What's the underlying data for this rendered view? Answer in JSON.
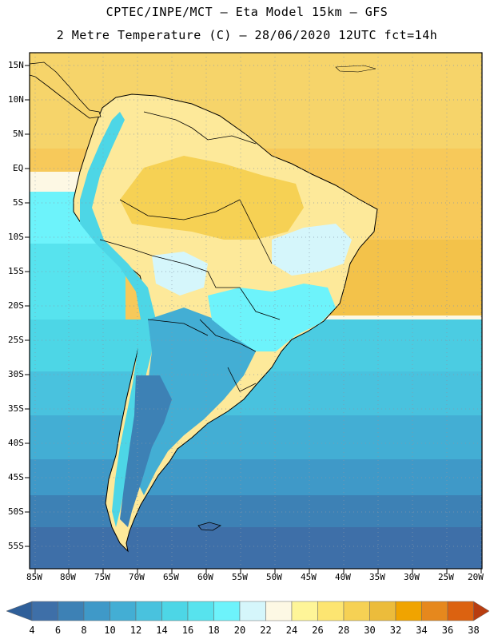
{
  "header": {
    "line1": "CPTEC/INPE/MCT –  Eta Model 15km – GFS",
    "line2": "2 Metre Temperature (C) – 28/06/2020 12UTC fct=14h"
  },
  "map": {
    "lat_labels": [
      "15N",
      "10N",
      "5N",
      "EQ",
      "5S",
      "10S",
      "15S",
      "20S",
      "25S",
      "30S",
      "35S",
      "40S",
      "45S",
      "50S",
      "55S"
    ],
    "lon_labels": [
      "85W",
      "80W",
      "75W",
      "70W",
      "65W",
      "60W",
      "55W",
      "50W",
      "45W",
      "40W",
      "35W",
      "30W",
      "25W",
      "20W"
    ]
  },
  "colorbar": {
    "labels": [
      "4",
      "6",
      "8",
      "10",
      "12",
      "14",
      "16",
      "18",
      "20",
      "22",
      "24",
      "26",
      "28",
      "30",
      "32",
      "34",
      "36",
      "38"
    ],
    "colors": [
      "#3e6fa8",
      "#3d81b5",
      "#3f99c8",
      "#43aed4",
      "#49c2de",
      "#4dd6e6",
      "#57e3ee",
      "#6df3fb",
      "#d5f6fb",
      "#fdf8e4",
      "#fef598",
      "#fde571",
      "#f6d154",
      "#ecbc3b",
      "#f0a400",
      "#e6881d",
      "#dc6210",
      "#c8430a"
    ],
    "low_color": "#2f5f99",
    "high_color": "#b83d10"
  },
  "palette": {
    "ocean_deep": "#3366a5",
    "ocean_mid": "#3f8ec2",
    "ocean_light": "#4ec8e6",
    "land_warm": "#f6d46a",
    "land_yellow": "#fde99a",
    "atlantic_warm": "#f2c650"
  }
}
